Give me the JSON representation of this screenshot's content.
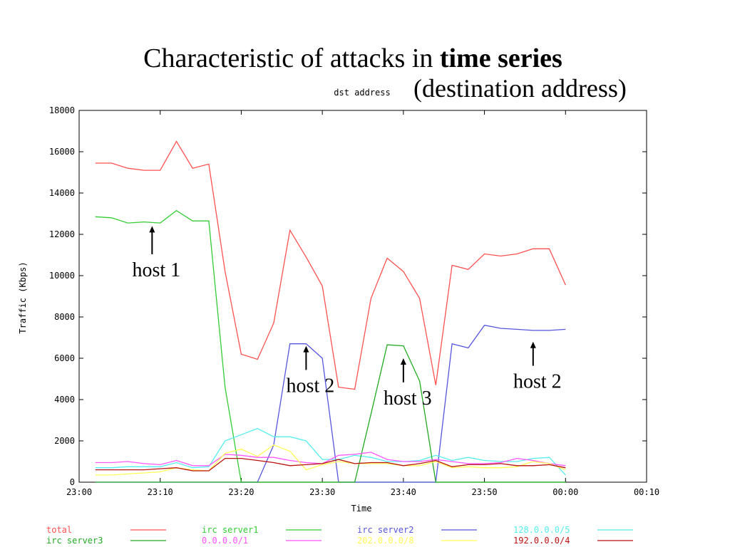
{
  "slide": {
    "title_plain": "Characteristic of attacks in ",
    "title_bold": "time series",
    "subtitle": "(destination address)"
  },
  "chart_data": {
    "type": "line",
    "title": "dst address",
    "xlabel": "Time",
    "ylabel": "Traffic (Kbps)",
    "x_tick_labels": [
      "23:00",
      "23:10",
      "23:20",
      "23:30",
      "23:40",
      "23:50",
      "00:00",
      "00:10"
    ],
    "x_tick_minutes": [
      0,
      10,
      20,
      30,
      40,
      50,
      60,
      70
    ],
    "xlim": [
      0,
      70
    ],
    "ylim": [
      0,
      18000
    ],
    "y_ticks": [
      0,
      2000,
      4000,
      6000,
      8000,
      10000,
      12000,
      14000,
      16000,
      18000
    ],
    "x": [
      2,
      4,
      6,
      8,
      10,
      12,
      14,
      16,
      18,
      20,
      22,
      24,
      26,
      28,
      30,
      32,
      34,
      36,
      38,
      40,
      42,
      44,
      46,
      48,
      50,
      52,
      54,
      56,
      58,
      60
    ],
    "grid": false,
    "legend_position": "bottom",
    "series": [
      {
        "name": "total",
        "color": "#ff5050",
        "values": [
          15450,
          15450,
          15200,
          15100,
          15100,
          16500,
          15200,
          15400,
          10200,
          6200,
          5950,
          7700,
          12200,
          10900,
          9500,
          4600,
          4500,
          8900,
          10850,
          10200,
          8900,
          4700,
          10500,
          10300,
          11050,
          10950,
          11050,
          11300,
          11300,
          9550
        ]
      },
      {
        "name": "irc server1",
        "color": "#33cc33",
        "values": [
          12850,
          12800,
          12550,
          12600,
          12550,
          13150,
          12650,
          12650,
          4600,
          0,
          0,
          0,
          0,
          0,
          0,
          0,
          0,
          0,
          0,
          0,
          0,
          0,
          0,
          0,
          0,
          0,
          0,
          0,
          0,
          0
        ]
      },
      {
        "name": "irc server2",
        "color": "#5555dd",
        "values": [
          0,
          0,
          0,
          0,
          0,
          0,
          0,
          0,
          0,
          0,
          0,
          1800,
          6700,
          6700,
          6000,
          0,
          0,
          0,
          0,
          0,
          0,
          0,
          6700,
          6500,
          7600,
          7450,
          7400,
          7350,
          7350,
          7400
        ]
      },
      {
        "name": "128.0.0.0/5",
        "color": "#55eeee",
        "values": [
          700,
          700,
          750,
          750,
          750,
          950,
          700,
          750,
          2000,
          2300,
          2600,
          2200,
          2200,
          2000,
          1100,
          1100,
          1300,
          1200,
          1000,
          1000,
          1050,
          1300,
          1050,
          1200,
          1050,
          1000,
          1000,
          1150,
          1200,
          350
        ]
      },
      {
        "name": "irc server3",
        "color": "#22aa22",
        "values": [
          0,
          0,
          0,
          0,
          0,
          0,
          0,
          0,
          0,
          0,
          0,
          0,
          0,
          0,
          0,
          0,
          0,
          3300,
          6650,
          6600,
          4900,
          0,
          0,
          0,
          0,
          0,
          0,
          0,
          0,
          0
        ]
      },
      {
        "name": "0.0.0.0/1",
        "color": "#ff55ff",
        "values": [
          950,
          950,
          1000,
          900,
          850,
          1050,
          800,
          800,
          1350,
          1300,
          1200,
          1200,
          1050,
          950,
          900,
          1300,
          1350,
          1450,
          1100,
          1000,
          1000,
          1100,
          1000,
          900,
          900,
          950,
          1150,
          1050,
          900,
          800
        ]
      },
      {
        "name": "202.0.0.0/8",
        "color": "#ffff55",
        "values": [
          350,
          350,
          400,
          450,
          500,
          700,
          600,
          550,
          1400,
          1600,
          1250,
          1800,
          1500,
          600,
          850,
          1000,
          900,
          900,
          900,
          800,
          800,
          1000,
          700,
          750,
          700,
          700,
          750,
          1000,
          900,
          600
        ]
      },
      {
        "name": "192.0.0.0/4",
        "color": "#bb1111",
        "values": [
          600,
          600,
          600,
          600,
          650,
          700,
          550,
          550,
          1150,
          1150,
          1050,
          950,
          800,
          850,
          900,
          1100,
          900,
          950,
          950,
          800,
          900,
          1050,
          750,
          850,
          850,
          900,
          800,
          800,
          850,
          700
        ]
      }
    ],
    "annotations": [
      {
        "text": "host 1",
        "x": 9,
        "y": 12400,
        "label_y": 10000
      },
      {
        "text": "host 2",
        "x": 28,
        "y": 6600,
        "label_y": 4400
      },
      {
        "text": "host 3",
        "x": 40,
        "y": 6000,
        "label_y": 3800
      },
      {
        "text": "host 2",
        "x": 56,
        "y": 6800,
        "label_y": 4600
      }
    ]
  }
}
